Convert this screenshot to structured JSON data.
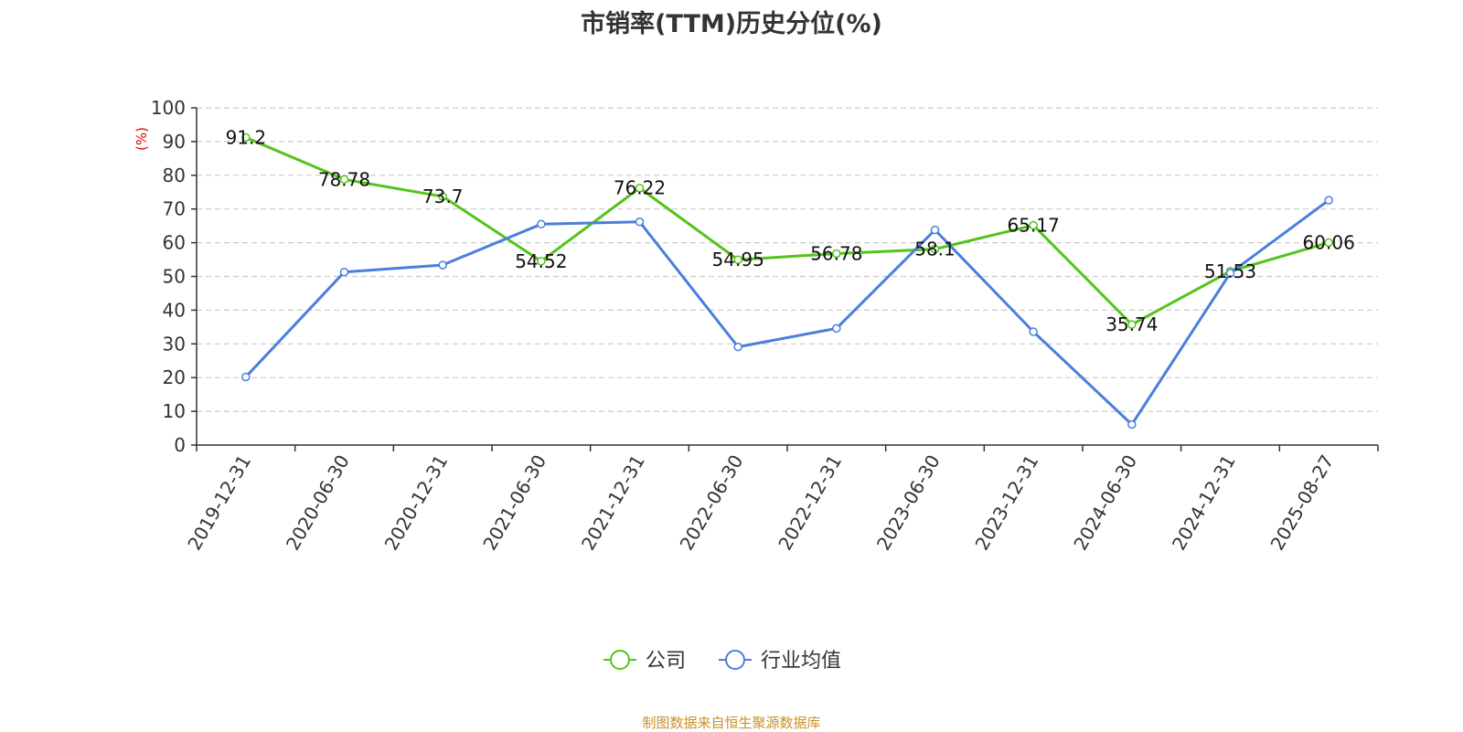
{
  "chart_data": {
    "type": "line",
    "title": "市销率(TTM)历史分位(%)",
    "ylabel": "(%)",
    "ylim": [
      0,
      100
    ],
    "yticks": [
      0,
      10,
      20,
      30,
      40,
      50,
      60,
      70,
      80,
      90,
      100
    ],
    "grid": true,
    "legend_position": "bottom",
    "categories": [
      "2019-12-31",
      "2020-06-30",
      "2020-12-31",
      "2021-06-30",
      "2021-12-31",
      "2022-06-30",
      "2022-12-31",
      "2023-06-30",
      "2023-12-31",
      "2024-06-30",
      "2024-12-31",
      "2025-08-27"
    ],
    "series": [
      {
        "name": "公司",
        "color": "#52c41a",
        "values": [
          91.2,
          78.78,
          73.7,
          54.52,
          76.22,
          54.95,
          56.78,
          58.1,
          65.17,
          35.74,
          51.53,
          60.06
        ],
        "labels": [
          "91.2",
          "78.78",
          "73.7",
          "54.52",
          "76.22",
          "54.95",
          "56.78",
          "58.1",
          "65.17",
          "35.74",
          "51.53",
          "60.06"
        ]
      },
      {
        "name": "行业均值",
        "color": "#4a7fdb",
        "values": [
          20.2,
          51.3,
          53.4,
          65.5,
          66.2,
          29.1,
          34.6,
          63.8,
          33.6,
          6.1,
          51.0,
          72.6
        ]
      }
    ]
  },
  "source": "制图数据来自恒生聚源数据库"
}
